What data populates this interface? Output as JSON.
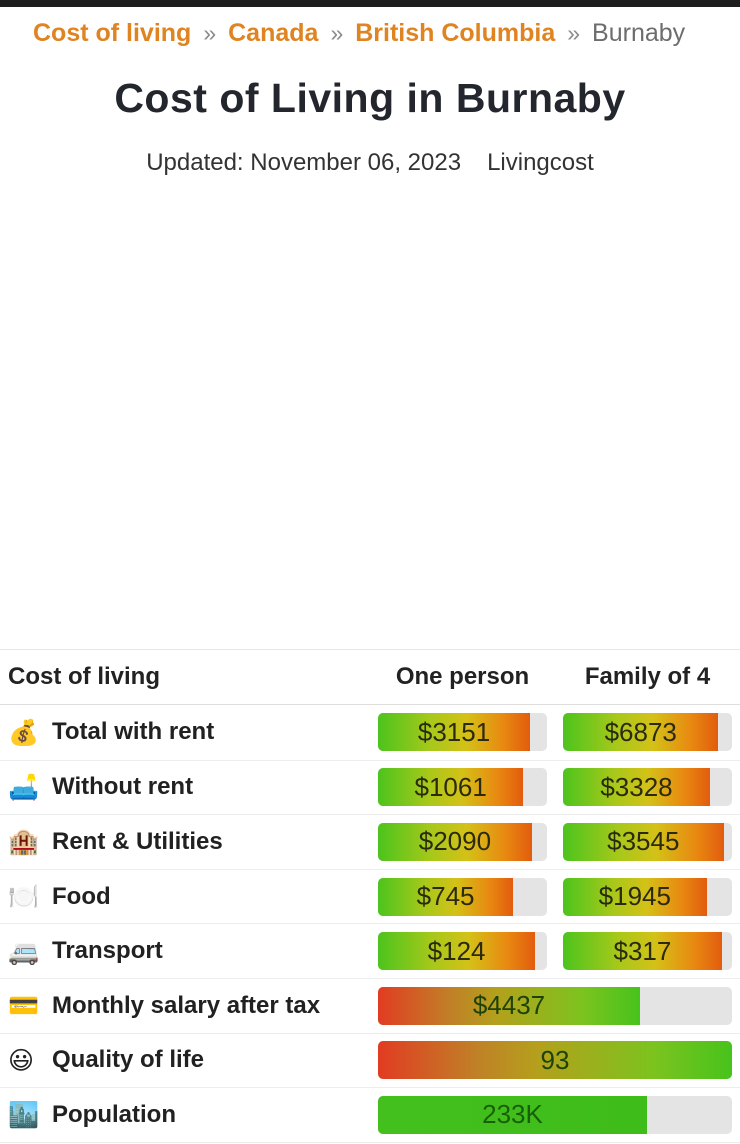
{
  "page": {
    "top_bar_color": "#1e1e1e",
    "accent_orange": "#e08321",
    "track_gray": "#e4e4e4"
  },
  "breadcrumb": {
    "separator": "»",
    "items": [
      {
        "label": "Cost of living"
      },
      {
        "label": "Canada"
      },
      {
        "label": "British Columbia"
      },
      {
        "label": "Burnaby"
      }
    ]
  },
  "header": {
    "title": "Cost of Living in Burnaby",
    "updated": "Updated: November 06, 2023",
    "source": "Livingcost"
  },
  "table": {
    "columns": [
      "Cost of living",
      "One person",
      "Family of 4"
    ],
    "rows": [
      {
        "icon": "💰",
        "icon_name": "money-bag-icon",
        "label": "Total with rent",
        "cells": [
          {
            "text": "$3151",
            "fill_pct": 90,
            "palette": "expense"
          },
          {
            "text": "$6873",
            "fill_pct": 92,
            "palette": "expense"
          }
        ]
      },
      {
        "icon": "🛋️",
        "icon_name": "couch-lamp-icon",
        "label": "Without rent",
        "cells": [
          {
            "text": "$1061",
            "fill_pct": 86,
            "palette": "expense"
          },
          {
            "text": "$3328",
            "fill_pct": 87,
            "palette": "expense"
          }
        ]
      },
      {
        "icon": "🏨",
        "icon_name": "hotel-icon",
        "label": "Rent & Utilities",
        "cells": [
          {
            "text": "$2090",
            "fill_pct": 91,
            "palette": "expense"
          },
          {
            "text": "$3545",
            "fill_pct": 95,
            "palette": "expense"
          }
        ]
      },
      {
        "icon": "🍽️",
        "icon_name": "fork-knife-plate-icon",
        "label": "Food",
        "cells": [
          {
            "text": "$745",
            "fill_pct": 80,
            "palette": "expense"
          },
          {
            "text": "$1945",
            "fill_pct": 85,
            "palette": "expense"
          }
        ]
      },
      {
        "icon": "🚐",
        "icon_name": "minibus-icon",
        "label": "Transport",
        "cells": [
          {
            "text": "$124",
            "fill_pct": 93,
            "palette": "expense"
          },
          {
            "text": "$317",
            "fill_pct": 94,
            "palette": "expense"
          }
        ]
      },
      {
        "icon": "💳",
        "icon_name": "credit-card-icon",
        "label": "Monthly salary after tax",
        "cells": [
          {
            "text": "$4437",
            "fill_pct": 74,
            "palette": "income",
            "span": 2
          }
        ]
      },
      {
        "icon": "😃",
        "icon_name": "smiley-face-icon",
        "label": "Quality of life",
        "cells": [
          {
            "text": "93",
            "fill_pct": 100,
            "palette": "income",
            "span": 2
          }
        ]
      },
      {
        "icon": "🏙️",
        "icon_name": "cityscape-icon",
        "label": "Population",
        "cells": [
          {
            "text": "233K",
            "fill_pct": 76,
            "palette": "population",
            "span": 2
          }
        ]
      }
    ]
  }
}
